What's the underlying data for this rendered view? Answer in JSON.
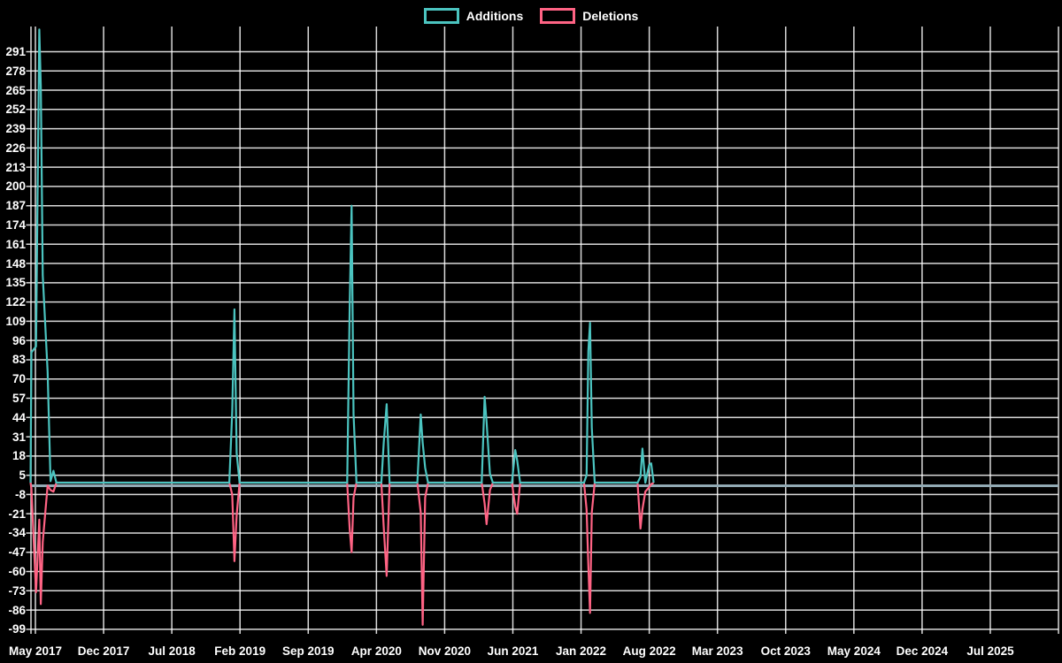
{
  "legend": {
    "items": [
      {
        "label": "Additions",
        "color": "#4bc4c0"
      },
      {
        "label": "Deletions",
        "color": "#ff6384"
      }
    ]
  },
  "colors": {
    "background": "#000000",
    "grid": "rgba(255,255,255,0.85)",
    "text": "#ffffff",
    "zero_line": "#92aab4",
    "additions": "#4bc4c0",
    "deletions": "#ff6384"
  },
  "chart_data": {
    "type": "line",
    "title": "",
    "xlabel": "",
    "ylabel": "",
    "x_tick_labels": [
      "May 2017",
      "Dec 2017",
      "Jul 2018",
      "Feb 2019",
      "Sep 2019",
      "Apr 2020",
      "Nov 2020",
      "Jun 2021",
      "Jan 2022",
      "Aug 2022",
      "Mar 2023",
      "Oct 2023",
      "May 2024",
      "Dec 2024",
      "Jul 2025"
    ],
    "x_tick_interval_months": 7,
    "y_ticks": [
      291,
      278,
      265,
      252,
      239,
      226,
      213,
      200,
      187,
      174,
      161,
      148,
      135,
      122,
      109,
      96,
      83,
      70,
      57,
      44,
      31,
      18,
      5,
      -8,
      -21,
      -34,
      -47,
      -60,
      -73,
      -86,
      -99
    ],
    "y_tick_step": 13,
    "ylim_labeled": [
      -99,
      291
    ],
    "grid": "on",
    "legend_position": "top-center",
    "x_unit": "months_since_May_2017",
    "series": [
      {
        "name": "Additions",
        "color": "#4bc4c0",
        "points": [
          [
            -0.5,
            0
          ],
          [
            -0.41,
            88
          ],
          [
            0.06,
            92
          ],
          [
            0.4,
            306
          ],
          [
            0.55,
            268
          ],
          [
            0.75,
            140
          ],
          [
            1.25,
            75
          ],
          [
            1.55,
            1
          ],
          [
            1.85,
            8
          ],
          [
            2.15,
            0
          ],
          [
            19.9,
            0
          ],
          [
            20.2,
            48
          ],
          [
            20.43,
            117
          ],
          [
            20.65,
            20
          ],
          [
            20.95,
            0
          ],
          [
            32.0,
            0
          ],
          [
            32.25,
            118
          ],
          [
            32.45,
            187
          ],
          [
            32.65,
            46
          ],
          [
            32.95,
            0
          ],
          [
            35.5,
            0
          ],
          [
            35.75,
            27
          ],
          [
            36.05,
            53
          ],
          [
            36.35,
            0
          ],
          [
            39.2,
            0
          ],
          [
            39.55,
            46
          ],
          [
            39.75,
            27
          ],
          [
            40.0,
            10
          ],
          [
            40.3,
            0
          ],
          [
            45.8,
            0
          ],
          [
            46.1,
            58
          ],
          [
            46.3,
            41
          ],
          [
            46.65,
            6
          ],
          [
            46.95,
            0
          ],
          [
            48.9,
            0
          ],
          [
            49.25,
            22
          ],
          [
            49.45,
            15
          ],
          [
            49.75,
            0
          ],
          [
            56.3,
            0
          ],
          [
            56.57,
            5
          ],
          [
            56.75,
            89
          ],
          [
            56.92,
            108
          ],
          [
            57.1,
            37
          ],
          [
            57.4,
            0
          ],
          [
            61.8,
            0
          ],
          [
            62.1,
            4
          ],
          [
            62.3,
            23
          ],
          [
            62.6,
            0
          ],
          [
            63.0,
            12
          ],
          [
            63.2,
            13
          ],
          [
            63.45,
            0
          ]
        ]
      },
      {
        "name": "Deletions",
        "color": "#ff6384",
        "points": [
          [
            -0.5,
            0
          ],
          [
            -0.41,
            -4
          ],
          [
            0.06,
            -74
          ],
          [
            0.4,
            -25
          ],
          [
            0.55,
            -82
          ],
          [
            0.75,
            -40
          ],
          [
            1.25,
            -2
          ],
          [
            1.55,
            -5
          ],
          [
            1.85,
            -6
          ],
          [
            2.15,
            0
          ],
          [
            19.9,
            0
          ],
          [
            20.2,
            -8
          ],
          [
            20.43,
            -53
          ],
          [
            20.65,
            -22
          ],
          [
            20.95,
            0
          ],
          [
            32.0,
            0
          ],
          [
            32.25,
            -31
          ],
          [
            32.45,
            -47
          ],
          [
            32.65,
            -10
          ],
          [
            32.95,
            0
          ],
          [
            35.5,
            0
          ],
          [
            35.75,
            -30
          ],
          [
            36.05,
            -63
          ],
          [
            36.35,
            0
          ],
          [
            39.2,
            0
          ],
          [
            39.55,
            -20
          ],
          [
            39.75,
            -96
          ],
          [
            40.0,
            -10
          ],
          [
            40.3,
            0
          ],
          [
            45.8,
            0
          ],
          [
            46.1,
            -14
          ],
          [
            46.3,
            -28
          ],
          [
            46.65,
            -5
          ],
          [
            46.95,
            0
          ],
          [
            48.9,
            0
          ],
          [
            49.25,
            -16
          ],
          [
            49.45,
            -21
          ],
          [
            49.75,
            0
          ],
          [
            56.3,
            0
          ],
          [
            56.57,
            -18
          ],
          [
            56.75,
            -56
          ],
          [
            56.92,
            -88
          ],
          [
            57.1,
            -20
          ],
          [
            57.4,
            0
          ],
          [
            61.8,
            0
          ],
          [
            62.1,
            -31
          ],
          [
            62.3,
            -18
          ],
          [
            62.6,
            -6
          ],
          [
            63.0,
            -3
          ],
          [
            63.2,
            -1
          ],
          [
            63.45,
            0
          ]
        ]
      }
    ]
  }
}
